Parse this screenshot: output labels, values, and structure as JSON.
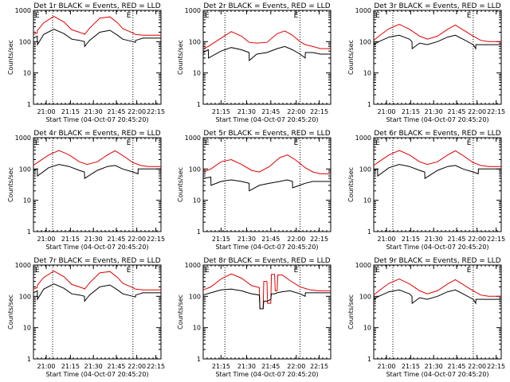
{
  "colors": {
    "events": "#000000",
    "lld": "#e00000",
    "axes": "#000000",
    "background": "#ffffff"
  },
  "shared": {
    "ylabel": "Counts/sec",
    "xlabel": "Start Time (04-Oct-07 20:45:20)",
    "time_ticks": [
      "21:00",
      "21:15",
      "21:30",
      "21:45",
      "22:00",
      "22:15"
    ],
    "y_ticks": [
      "1",
      "10",
      "100",
      "1000"
    ],
    "marker": "E",
    "y_scale": "log",
    "ylim": [
      1,
      1000
    ]
  },
  "chart_data": [
    {
      "type": "line",
      "title": "Det 1r BLACK = Events, RED = LLD",
      "x_ticks": [
        "21:00",
        "21:15",
        "21:30",
        "21:45",
        "22:00",
        "22:15"
      ],
      "series": [
        {
          "x": [
            0,
            0.03,
            0.031,
            0.08,
            0.16,
            0.24,
            0.3,
            0.36,
            0.4,
            0.401,
            0.44,
            0.52,
            0.6,
            0.66,
            0.7,
            0.78,
            0.8,
            0.801,
            0.86,
            0.92,
            1.0
          ],
          "y": [
            170,
            190,
            230,
            400,
            640,
            420,
            240,
            200,
            175,
            170,
            270,
            560,
            620,
            400,
            260,
            190,
            170,
            170,
            160,
            160,
            160
          ]
        },
        {
          "x": [
            0,
            0.03,
            0.031,
            0.08,
            0.16,
            0.24,
            0.3,
            0.36,
            0.4,
            0.401,
            0.44,
            0.52,
            0.6,
            0.66,
            0.7,
            0.78,
            0.8,
            0.801,
            0.86,
            0.92,
            1.0
          ],
          "y": [
            130,
            150,
            80,
            170,
            250,
            180,
            120,
            110,
            100,
            70,
            110,
            200,
            230,
            160,
            120,
            100,
            95,
            110,
            130,
            130,
            130
          ]
        }
      ]
    },
    {
      "type": "line",
      "title": "Det 2r BLACK = Events, RED = LLD",
      "x_ticks": [
        "21:15",
        "21:30",
        "21:45",
        "22:00",
        "22:15"
      ],
      "series": [
        {
          "x": [
            0,
            0.04,
            0.14,
            0.22,
            0.3,
            0.36,
            0.42,
            0.5,
            0.58,
            0.64,
            0.7,
            0.76,
            0.8,
            0.86,
            0.92,
            1.0
          ],
          "y": [
            60,
            70,
            130,
            210,
            150,
            95,
            90,
            95,
            180,
            220,
            160,
            100,
            80,
            70,
            60,
            60
          ]
        },
        {
          "x": [
            0,
            0.04,
            0.041,
            0.14,
            0.22,
            0.3,
            0.36,
            0.361,
            0.42,
            0.5,
            0.58,
            0.64,
            0.7,
            0.76,
            0.8,
            0.801,
            0.86,
            0.92,
            1.0
          ],
          "y": [
            45,
            55,
            30,
            50,
            65,
            55,
            45,
            25,
            40,
            45,
            60,
            70,
            55,
            40,
            30,
            45,
            45,
            40,
            40
          ]
        }
      ]
    },
    {
      "type": "line",
      "title": "Det 3r BLACK = Events, RED = LLD",
      "x_ticks": [
        "21:00",
        "21:15",
        "21:30",
        "21:45",
        "22:00",
        "22:15"
      ],
      "series": [
        {
          "x": [
            0,
            0.04,
            0.12,
            0.2,
            0.28,
            0.36,
            0.42,
            0.5,
            0.58,
            0.64,
            0.7,
            0.78,
            0.84,
            0.9,
            1.0
          ],
          "y": [
            110,
            150,
            260,
            360,
            250,
            150,
            120,
            150,
            250,
            340,
            240,
            150,
            110,
            100,
            100
          ]
        },
        {
          "x": [
            0,
            0.04,
            0.12,
            0.2,
            0.28,
            0.3,
            0.301,
            0.36,
            0.42,
            0.5,
            0.58,
            0.64,
            0.7,
            0.78,
            0.8,
            0.801,
            0.86,
            0.92,
            1.0
          ],
          "y": [
            80,
            100,
            140,
            160,
            120,
            100,
            60,
            90,
            80,
            100,
            140,
            160,
            120,
            80,
            60,
            80,
            80,
            80,
            80
          ]
        }
      ]
    },
    {
      "type": "line",
      "title": "Det 4r BLACK = Events, RED = LLD",
      "x_ticks": [
        "21:00",
        "21:15",
        "21:30",
        "21:45",
        "22:00",
        "22:15"
      ],
      "series": [
        {
          "x": [
            0,
            0.04,
            0.12,
            0.2,
            0.28,
            0.36,
            0.42,
            0.5,
            0.58,
            0.64,
            0.7,
            0.78,
            0.84,
            0.9,
            1.0
          ],
          "y": [
            130,
            170,
            280,
            390,
            280,
            170,
            140,
            170,
            280,
            380,
            270,
            160,
            130,
            120,
            120
          ]
        },
        {
          "x": [
            0,
            0.03,
            0.031,
            0.12,
            0.2,
            0.28,
            0.36,
            0.4,
            0.401,
            0.5,
            0.58,
            0.64,
            0.7,
            0.78,
            0.82,
            0.821,
            0.9,
            1.0
          ],
          "y": [
            90,
            100,
            60,
            110,
            140,
            120,
            90,
            80,
            50,
            90,
            120,
            130,
            100,
            80,
            70,
            100,
            100,
            100
          ]
        }
      ]
    },
    {
      "type": "line",
      "title": "Det 5r BLACK = Events, RED = LLD",
      "x_ticks": [
        "21:15",
        "21:30",
        "21:45",
        "22:00",
        "22:15"
      ],
      "series": [
        {
          "x": [
            0,
            0.06,
            0.14,
            0.22,
            0.3,
            0.38,
            0.44,
            0.52,
            0.6,
            0.66,
            0.72,
            0.8,
            0.86,
            0.92,
            1.0
          ],
          "y": [
            80,
            100,
            170,
            200,
            140,
            90,
            80,
            120,
            230,
            280,
            200,
            110,
            80,
            70,
            70
          ]
        },
        {
          "x": [
            0,
            0.06,
            0.061,
            0.14,
            0.22,
            0.3,
            0.36,
            0.361,
            0.44,
            0.52,
            0.6,
            0.66,
            0.7,
            0.701,
            0.8,
            0.86,
            0.92,
            1.0
          ],
          "y": [
            50,
            55,
            30,
            40,
            45,
            40,
            35,
            20,
            30,
            35,
            40,
            45,
            40,
            25,
            35,
            40,
            40,
            40
          ]
        }
      ]
    },
    {
      "type": "line",
      "title": "Det 6r BLACK = Events, RED = LLD",
      "x_ticks": [
        "21:00",
        "21:15",
        "21:30",
        "21:45",
        "22:00",
        "22:15"
      ],
      "series": [
        {
          "x": [
            0,
            0.04,
            0.12,
            0.2,
            0.28,
            0.36,
            0.42,
            0.5,
            0.58,
            0.64,
            0.7,
            0.78,
            0.84,
            0.9,
            1.0
          ],
          "y": [
            130,
            170,
            280,
            390,
            280,
            170,
            140,
            170,
            280,
            380,
            270,
            160,
            130,
            120,
            120
          ]
        },
        {
          "x": [
            0,
            0.03,
            0.031,
            0.12,
            0.2,
            0.28,
            0.36,
            0.4,
            0.401,
            0.5,
            0.58,
            0.64,
            0.7,
            0.78,
            0.82,
            0.821,
            0.9,
            1.0
          ],
          "y": [
            90,
            100,
            60,
            110,
            140,
            120,
            90,
            80,
            50,
            90,
            120,
            130,
            100,
            80,
            70,
            100,
            100,
            100
          ]
        }
      ]
    },
    {
      "type": "line",
      "title": "Det 7r BLACK = Events, RED = LLD",
      "x_ticks": [
        "21:00",
        "21:15",
        "21:30",
        "21:45",
        "22:00",
        "22:15"
      ],
      "series": [
        {
          "x": [
            0,
            0.03,
            0.031,
            0.08,
            0.16,
            0.24,
            0.3,
            0.36,
            0.4,
            0.401,
            0.44,
            0.52,
            0.6,
            0.66,
            0.7,
            0.78,
            0.8,
            0.801,
            0.86,
            0.92,
            1.0
          ],
          "y": [
            170,
            190,
            230,
            400,
            640,
            420,
            240,
            200,
            175,
            170,
            270,
            560,
            620,
            400,
            260,
            190,
            170,
            170,
            160,
            160,
            160
          ]
        },
        {
          "x": [
            0,
            0.03,
            0.031,
            0.08,
            0.16,
            0.24,
            0.3,
            0.36,
            0.4,
            0.401,
            0.44,
            0.52,
            0.6,
            0.66,
            0.7,
            0.78,
            0.8,
            0.801,
            0.86,
            0.92,
            1.0
          ],
          "y": [
            130,
            150,
            80,
            170,
            250,
            180,
            120,
            110,
            100,
            70,
            110,
            200,
            230,
            160,
            120,
            100,
            95,
            110,
            130,
            130,
            130
          ]
        }
      ]
    },
    {
      "type": "line",
      "title": "Det 8r BLACK = Events, RED = LLD",
      "x_ticks": [
        "21:15",
        "21:30",
        "21:45",
        "22:00",
        "22:15"
      ],
      "series": [
        {
          "x": [
            0,
            0.06,
            0.14,
            0.22,
            0.3,
            0.38,
            0.44,
            0.445,
            0.47,
            0.475,
            0.5,
            0.505,
            0.53,
            0.535,
            0.56,
            0.565,
            0.58,
            0.585,
            0.62,
            0.68,
            0.76,
            0.84,
            0.9,
            1.0
          ],
          "y": [
            160,
            200,
            360,
            520,
            380,
            220,
            190,
            40,
            40,
            300,
            300,
            60,
            60,
            500,
            500,
            150,
            150,
            480,
            480,
            320,
            200,
            160,
            150,
            150
          ]
        },
        {
          "x": [
            0,
            0.06,
            0.14,
            0.22,
            0.3,
            0.38,
            0.44,
            0.445,
            0.47,
            0.475,
            0.5,
            0.505,
            0.53,
            0.535,
            0.56,
            0.58,
            0.62,
            0.68,
            0.76,
            0.8,
            0.801,
            0.9,
            1.0
          ],
          "y": [
            110,
            130,
            160,
            170,
            150,
            120,
            110,
            40,
            40,
            70,
            70,
            70,
            80,
            120,
            120,
            130,
            140,
            150,
            120,
            100,
            130,
            130,
            130
          ]
        }
      ]
    },
    {
      "type": "line",
      "title": "Det 9r BLACK = Events, RED = LLD",
      "x_ticks": [
        "21:00",
        "21:15",
        "21:30",
        "21:45",
        "22:00",
        "22:15"
      ],
      "series": [
        {
          "x": [
            0,
            0.04,
            0.12,
            0.2,
            0.28,
            0.36,
            0.42,
            0.5,
            0.58,
            0.64,
            0.7,
            0.78,
            0.84,
            0.9,
            1.0
          ],
          "y": [
            110,
            150,
            260,
            360,
            250,
            150,
            120,
            150,
            250,
            340,
            240,
            150,
            110,
            100,
            100
          ]
        },
        {
          "x": [
            0,
            0.04,
            0.12,
            0.2,
            0.28,
            0.3,
            0.301,
            0.36,
            0.42,
            0.5,
            0.58,
            0.64,
            0.7,
            0.78,
            0.8,
            0.801,
            0.86,
            0.92,
            1.0
          ],
          "y": [
            80,
            100,
            140,
            160,
            120,
            100,
            60,
            90,
            80,
            100,
            140,
            160,
            120,
            80,
            60,
            80,
            80,
            80,
            80
          ]
        }
      ]
    }
  ]
}
